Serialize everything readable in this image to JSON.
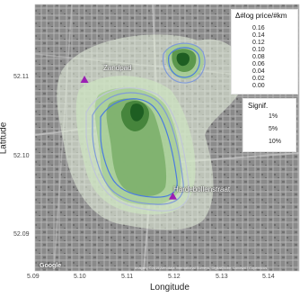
{
  "axes": {
    "x_title": "Longitude",
    "y_title": "Latitude",
    "x_ticks": [
      "5.09",
      "5.10",
      "5.11",
      "5.12",
      "5.13",
      "5.14"
    ],
    "y_ticks": [
      "52.11",
      "52.10",
      "52.09"
    ]
  },
  "map": {
    "xlim": [
      5.09,
      5.145
    ],
    "ylim": [
      52.085,
      52.122
    ],
    "attribution": "Google",
    "attribution_small": "Imagery ©2019 Aerodata International Surveys, DigitalGlobe, Landsat / Copernicus"
  },
  "points": [
    {
      "name": "Zandpad",
      "lon": 5.1003,
      "lat": 52.1115,
      "color": "#9b1fb3"
    },
    {
      "name": "Hardebollenstraat",
      "lon": 5.1187,
      "lat": 52.0953,
      "color": "#9b1fb3"
    }
  ],
  "legend_gradient": {
    "title": "Δ#log price/#km",
    "labels": [
      "0.16",
      "0.14",
      "0.12",
      "0.10",
      "0.08",
      "0.06",
      "0.04",
      "0.02",
      "0.00"
    ],
    "colors": [
      "#0b4d14",
      "#1f6a26",
      "#357f37",
      "#4f9447",
      "#6aa85c",
      "#8dbe7d",
      "#b2d5a3",
      "#d6ebcc",
      "#f4faf0"
    ]
  },
  "legend_signif": {
    "title": "Signif.",
    "items": [
      {
        "label": "1%",
        "color": "#4a7be0"
      },
      {
        "label": "5%",
        "color": "#7f9ad8"
      },
      {
        "label": "10%",
        "color": "#c0c6d8"
      }
    ]
  }
}
